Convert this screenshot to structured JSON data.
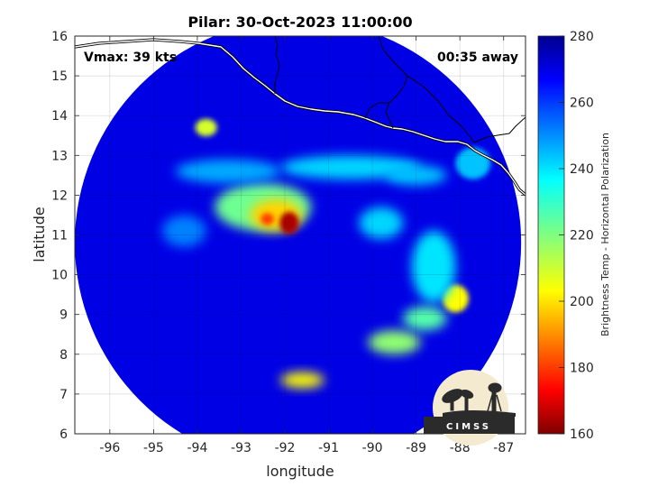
{
  "title": "Pilar: 30-Oct-2023 11:00:00",
  "overlay": {
    "vmax": "Vmax: 39 kts",
    "time_away": "00:35 away"
  },
  "logo_text": "CIMSS",
  "chart_data": {
    "type": "heatmap",
    "title": "Pilar: 30-Oct-2023 11:00:00",
    "xlabel": "longitude",
    "ylabel": "latitude",
    "xlim": [
      -96.8,
      -86.5
    ],
    "ylim": [
      6,
      16
    ],
    "x_ticks": [
      "-96",
      "-95",
      "-94",
      "-93",
      "-92",
      "-91",
      "-90",
      "-89",
      "-88",
      "-87"
    ],
    "x_tick_values": [
      -96,
      -95,
      -94,
      -93,
      -92,
      -91,
      -90,
      -89,
      -88,
      -87
    ],
    "y_ticks": [
      "6",
      "7",
      "8",
      "9",
      "10",
      "11",
      "12",
      "13",
      "14",
      "15",
      "16"
    ],
    "y_tick_values": [
      6,
      7,
      8,
      9,
      10,
      11,
      12,
      13,
      14,
      15,
      16
    ],
    "grid": true,
    "swath": {
      "center_lon": -91.7,
      "center_lat": 10.8,
      "radius_deg": 5.1
    },
    "background_temp": 268,
    "colorbar": {
      "label": "Brightness Temp - Horizontal Polarization",
      "min": 160,
      "max": 280,
      "ticks": [
        "160",
        "180",
        "200",
        "220",
        "240",
        "260",
        "280"
      ],
      "tick_values": [
        160,
        180,
        200,
        220,
        240,
        260,
        280
      ],
      "colormap": "jet"
    },
    "features": [
      {
        "name": "core",
        "lon": -92.5,
        "lat": 11.7,
        "rlon": 1.1,
        "rlat": 0.6,
        "temp": 222
      },
      {
        "name": "core-inner",
        "lon": -92.2,
        "lat": 11.5,
        "rlon": 0.6,
        "rlat": 0.4,
        "temp": 200
      },
      {
        "name": "core-red",
        "lon": -91.9,
        "lat": 11.3,
        "rlon": 0.22,
        "rlat": 0.28,
        "temp": 165
      },
      {
        "name": "core-red-2",
        "lon": -92.4,
        "lat": 11.4,
        "rlon": 0.15,
        "rlat": 0.15,
        "temp": 182
      },
      {
        "name": "band-north",
        "lon": -90.5,
        "lat": 12.7,
        "rlon": 1.6,
        "rlat": 0.3,
        "temp": 240
      },
      {
        "name": "band-nw",
        "lon": -93.3,
        "lat": 12.6,
        "rlon": 1.2,
        "rlat": 0.3,
        "temp": 245
      },
      {
        "name": "cell-94",
        "lon": -93.8,
        "lat": 13.7,
        "rlon": 0.25,
        "rlat": 0.22,
        "temp": 210
      },
      {
        "name": "cell-88",
        "lon": -88.1,
        "lat": 9.4,
        "rlon": 0.3,
        "rlat": 0.35,
        "temp": 205
      },
      {
        "name": "band-east-1",
        "lon": -88.6,
        "lat": 10.2,
        "rlon": 0.5,
        "rlat": 0.9,
        "temp": 238
      },
      {
        "name": "band-east-2",
        "lon": -89.5,
        "lat": 8.3,
        "rlon": 0.6,
        "rlat": 0.3,
        "temp": 218
      },
      {
        "name": "band-east-3",
        "lon": -88.8,
        "lat": 8.9,
        "rlon": 0.5,
        "rlat": 0.3,
        "temp": 225
      },
      {
        "name": "cell-south",
        "lon": -91.6,
        "lat": 7.35,
        "rlon": 0.5,
        "rlat": 0.2,
        "temp": 205
      },
      {
        "name": "cell-coast-e",
        "lon": -87.7,
        "lat": 12.8,
        "rlon": 0.4,
        "rlat": 0.4,
        "temp": 242
      },
      {
        "name": "band-mid",
        "lon": -89.8,
        "lat": 11.3,
        "rlon": 0.5,
        "rlat": 0.4,
        "temp": 240
      },
      {
        "name": "band-west",
        "lon": -94.3,
        "lat": 11.1,
        "rlon": 0.5,
        "rlat": 0.4,
        "temp": 250
      },
      {
        "name": "band-ne",
        "lon": -89.0,
        "lat": 12.5,
        "rlon": 0.7,
        "rlat": 0.25,
        "temp": 242
      }
    ]
  }
}
